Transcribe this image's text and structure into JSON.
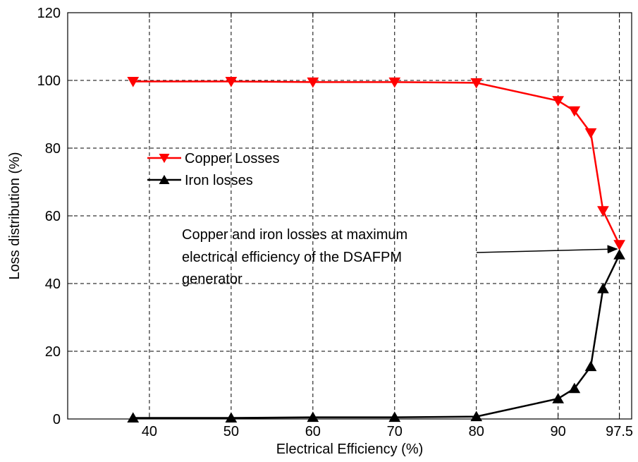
{
  "chart_data": {
    "type": "line",
    "title": "",
    "xlabel": "Electrical Efficiency (%)",
    "ylabel": "Loss distribution (%)",
    "xlim": [
      30,
      99
    ],
    "ylim": [
      0,
      120
    ],
    "grid": true,
    "x_ticks": [
      40,
      50,
      60,
      70,
      80,
      90,
      97.5
    ],
    "x_tick_labels": [
      "40",
      "50",
      "60",
      "70",
      "80",
      "90",
      "97.5"
    ],
    "y_ticks": [
      0,
      20,
      40,
      60,
      80,
      100,
      120
    ],
    "y_tick_labels": [
      "0",
      "20",
      "40",
      "60",
      "80",
      "100",
      "120"
    ],
    "legend_position": "center-left",
    "series": [
      {
        "name": "Copper Losses",
        "color": "#ff0000",
        "marker": "triangle-down",
        "x": [
          38,
          50,
          60,
          70,
          80,
          90,
          92,
          94,
          95.5,
          97.5
        ],
        "y": [
          99.7,
          99.7,
          99.5,
          99.5,
          99.3,
          94,
          91,
          84.5,
          61.5,
          51.5
        ]
      },
      {
        "name": "Iron losses",
        "color": "#000000",
        "marker": "triangle-up",
        "x": [
          38,
          50,
          60,
          70,
          80,
          90,
          92,
          94,
          95.5,
          97.5
        ],
        "y": [
          0.3,
          0.3,
          0.5,
          0.5,
          0.7,
          6,
          9,
          15.5,
          38.5,
          48.5
        ]
      }
    ],
    "annotation": {
      "lines": [
        "Copper and iron losses at maximum",
        "electrical efficiency of the DSAFPM",
        "generator"
      ],
      "arrow_to": {
        "x": 97.2,
        "y": 50
      }
    }
  }
}
